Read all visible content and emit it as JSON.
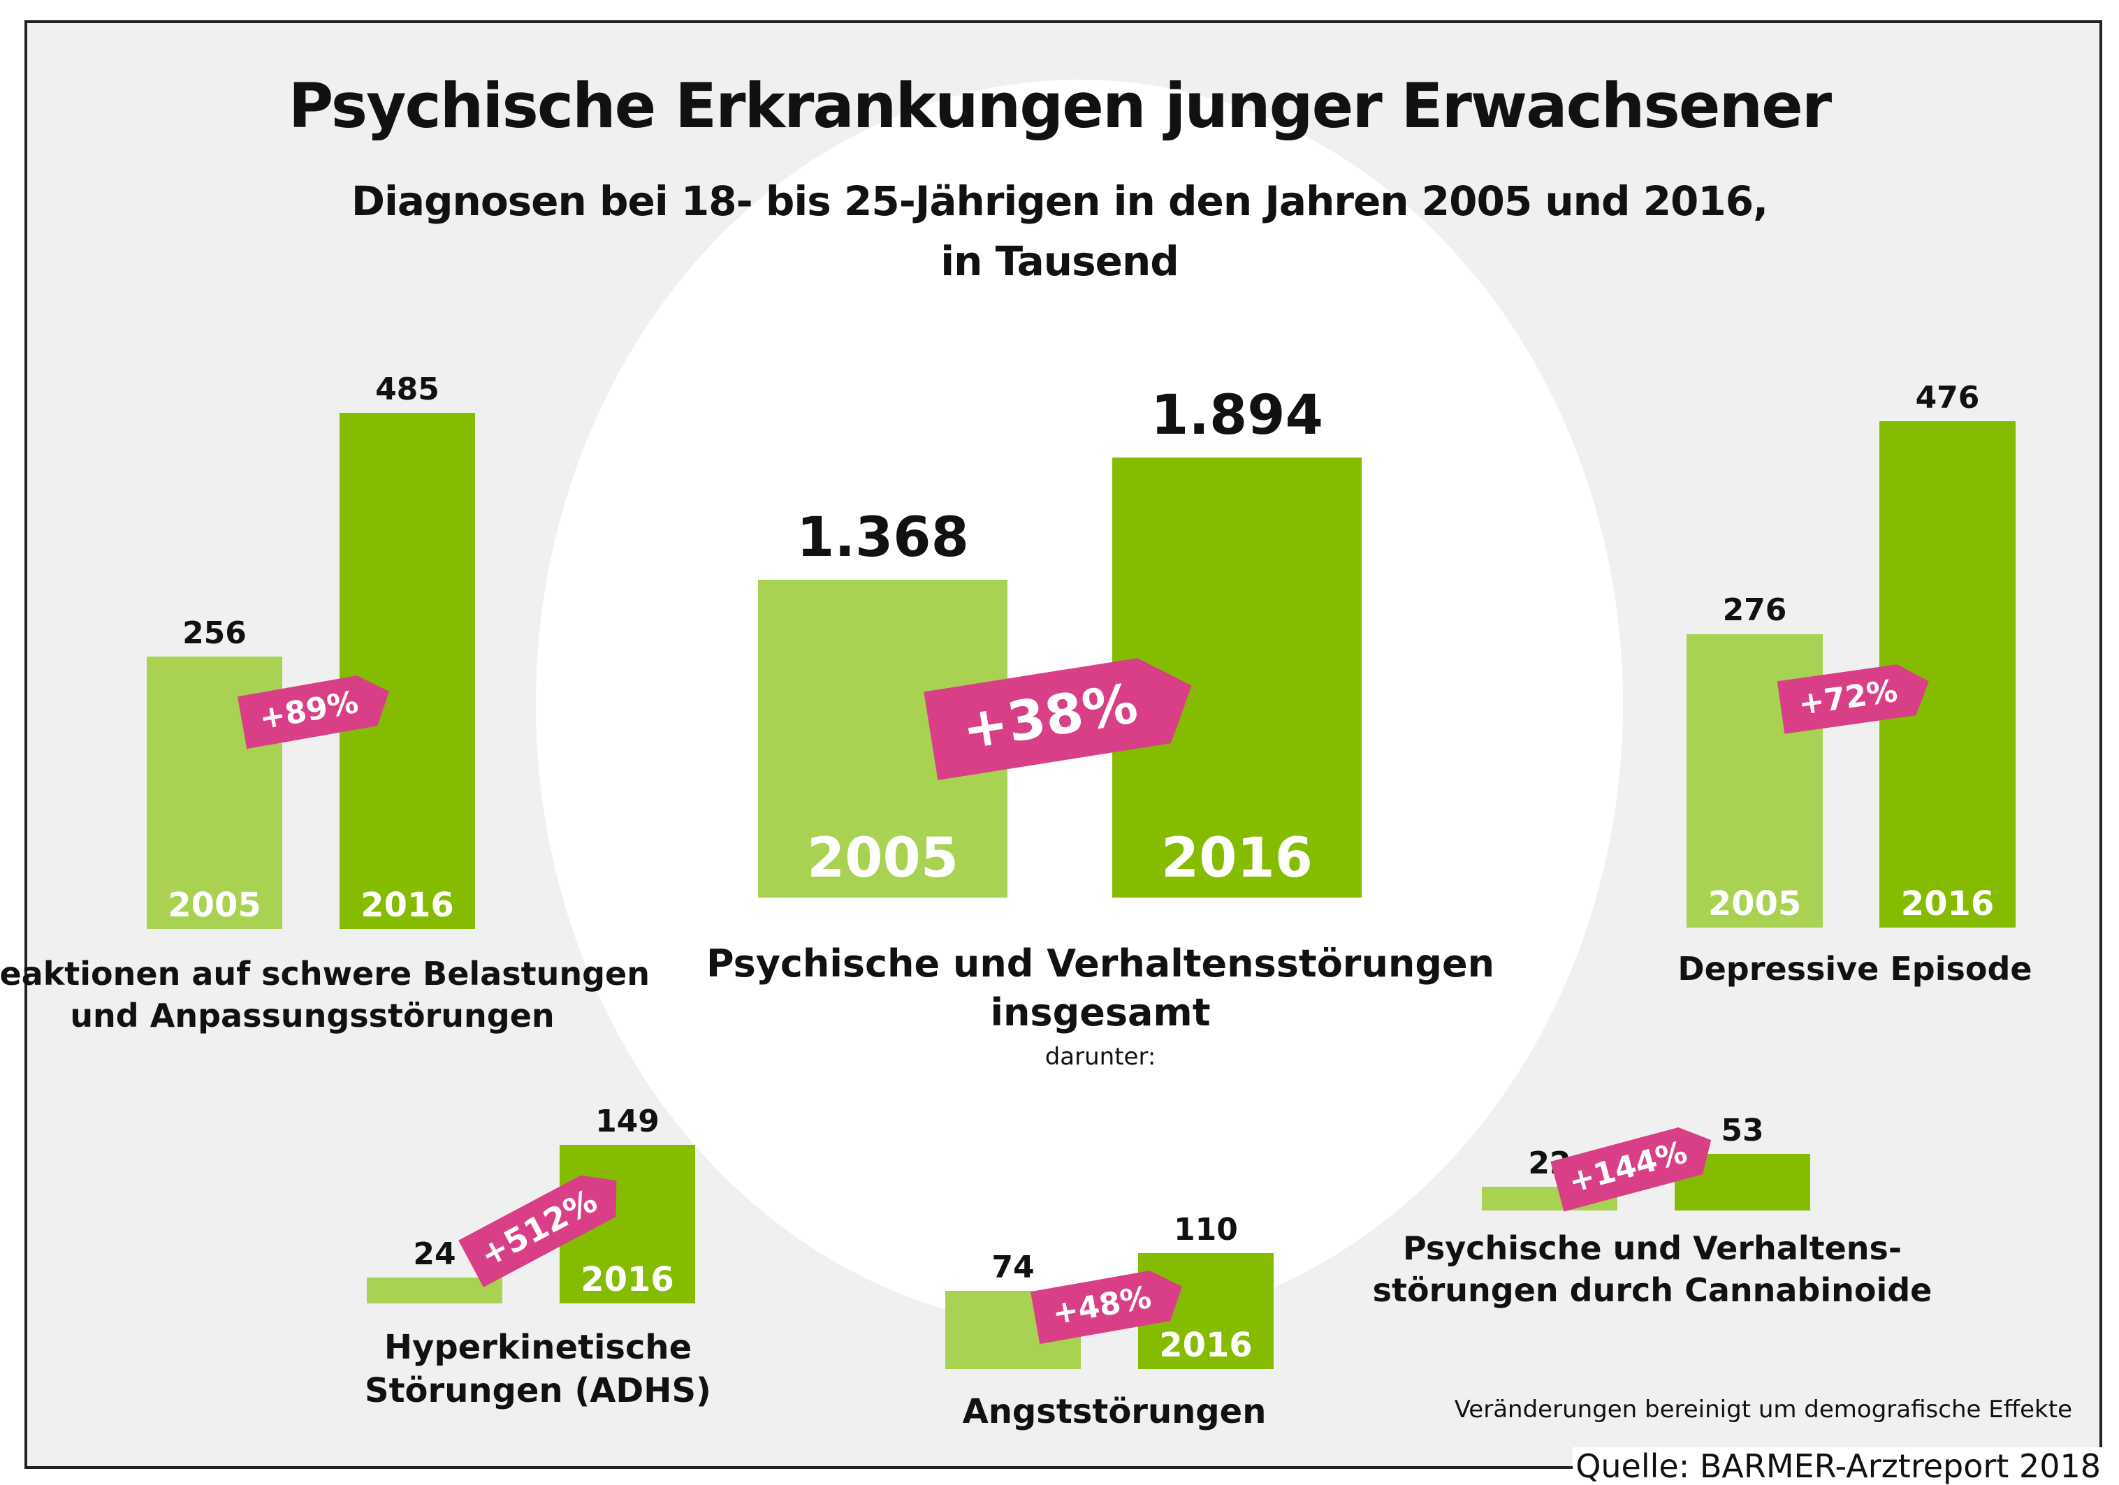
{
  "header": {
    "title": "Psychische Erkrankungen junger Erwachsener",
    "subtitle_line1": "Diagnosen bei 18- bis 25-Jährigen in den Jahren 2005 und 2016,",
    "subtitle_line2": "in Tausend"
  },
  "colors": {
    "bar_2005": "#a9d152",
    "bar_2016": "#86bc00",
    "change_tag": "#d83f87",
    "background": "#f0f0f0"
  },
  "chart_data": {
    "type": "bar",
    "title": "Psychische Erkrankungen junger Erwachsener",
    "subtitle": "Diagnosen bei 18- bis 25-Jährigen in den Jahren 2005 und 2016, in Tausend",
    "unit": "Tausend",
    "categories": [
      "2005",
      "2016"
    ],
    "groups": [
      {
        "id": "belastung",
        "label_line1": "Reaktionen auf schwere Belastungen",
        "label_line2": "und Anpassungsstörungen",
        "values": [
          256,
          485
        ],
        "value_labels": [
          "256",
          "485"
        ],
        "year_labels": [
          "2005",
          "2016"
        ],
        "change": "+89%",
        "change_pct": 89
      },
      {
        "id": "total",
        "label_line1": "Psychische und Verhaltensstörungen",
        "label_line2": "insgesamt",
        "sublabel": "darunter:",
        "values": [
          1368,
          1894
        ],
        "value_labels": [
          "1.368",
          "1.894"
        ],
        "year_labels": [
          "2005",
          "2016"
        ],
        "change": "+38%",
        "change_pct": 38
      },
      {
        "id": "depression",
        "label_line1": "Depressive Episode",
        "label_line2": "",
        "values": [
          276,
          476
        ],
        "value_labels": [
          "276",
          "476"
        ],
        "year_labels": [
          "2005",
          "2016"
        ],
        "change": "+72%",
        "change_pct": 72
      },
      {
        "id": "adhs",
        "label_line1": "Hyperkinetische",
        "label_line2": "Störungen (ADHS)",
        "values": [
          24,
          149
        ],
        "value_labels": [
          "24",
          "149"
        ],
        "year_labels": [
          "",
          "2016"
        ],
        "change": "+512%",
        "change_pct": 512
      },
      {
        "id": "angst",
        "label_line1": "Angststörungen",
        "label_line2": "",
        "values": [
          74,
          110
        ],
        "value_labels": [
          "74",
          "110"
        ],
        "year_labels": [
          "",
          "2016"
        ],
        "change": "+48%",
        "change_pct": 48
      },
      {
        "id": "cannabis",
        "label_line1": "Psychische und Verhaltens-",
        "label_line2": "störungen durch Cannabinoide",
        "values": [
          22,
          53
        ],
        "value_labels": [
          "22",
          "53"
        ],
        "year_labels": [
          "",
          ""
        ],
        "change": "+144%",
        "change_pct": 144
      }
    ]
  },
  "footer": {
    "note": "Veränderungen bereinigt um demografische Effekte",
    "source": "Quelle: BARMER-Arztreport 2018"
  }
}
